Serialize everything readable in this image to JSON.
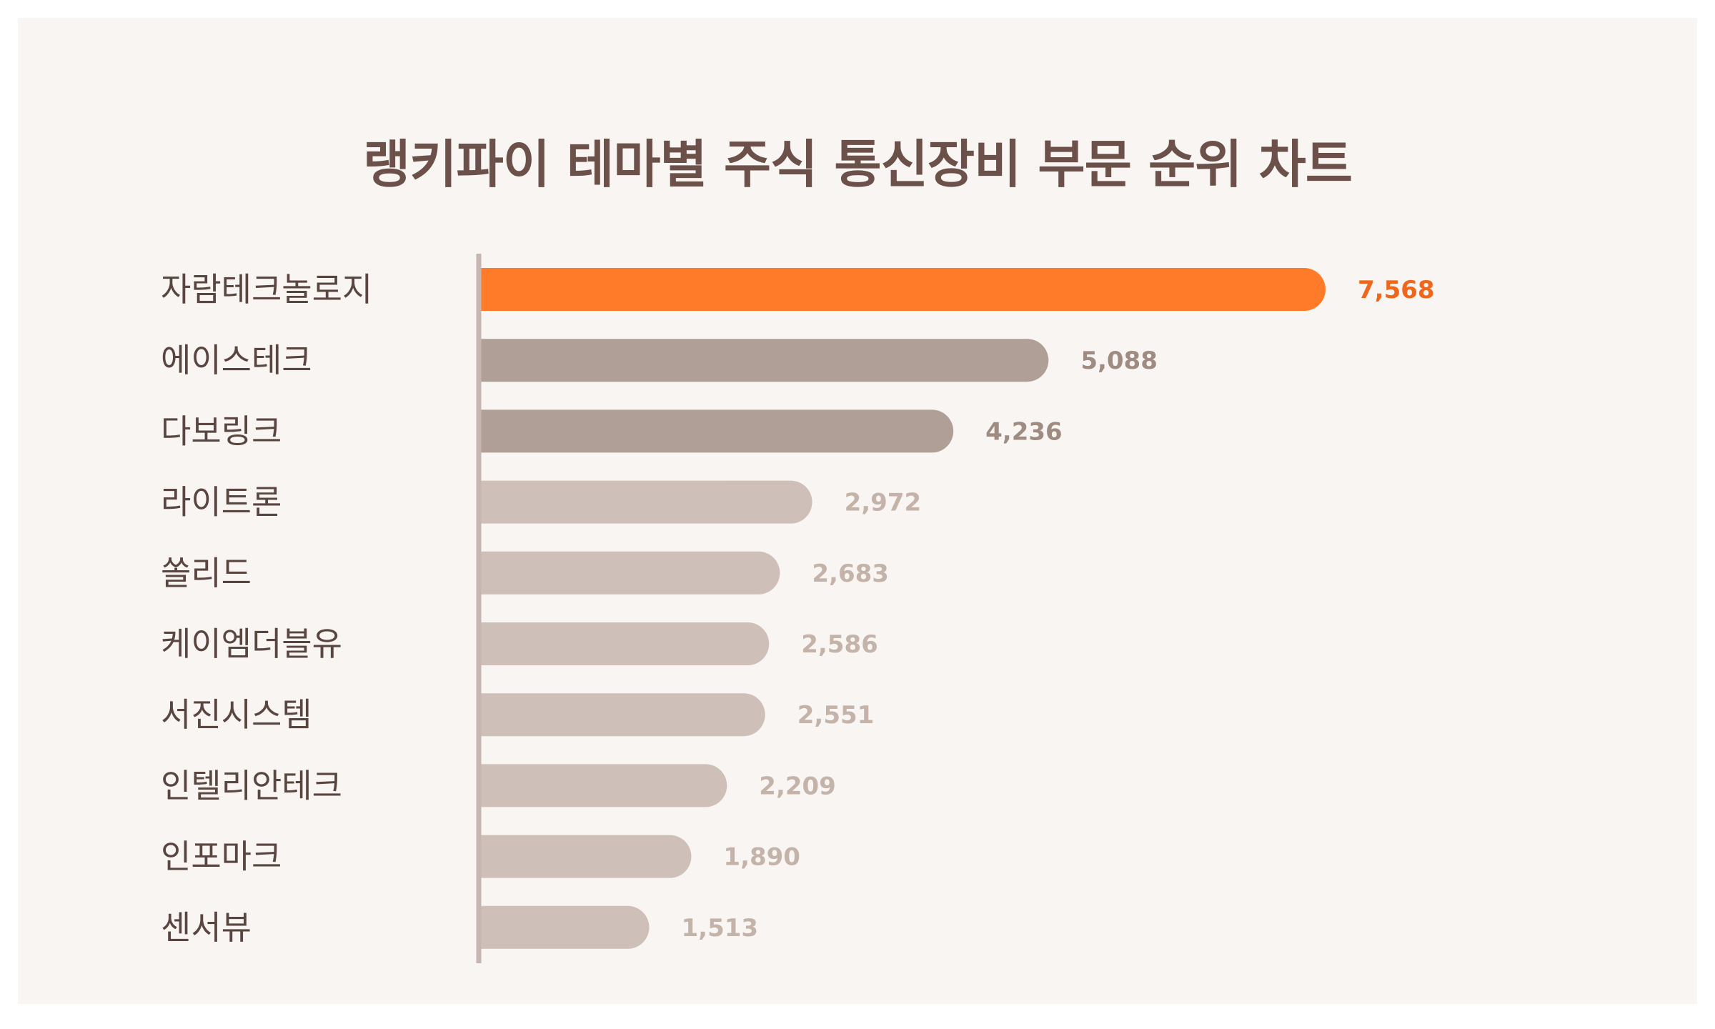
{
  "chart_data": {
    "type": "bar",
    "orientation": "horizontal",
    "title": "랭키파이 테마별 주식 통신장비 부문 순위 차트",
    "categories": [
      "자람테크놀로지",
      "에이스테크",
      "다보링크",
      "라이트론",
      "쏠리드",
      "케이엠더블유",
      "서진시스템",
      "인텔리안테크",
      "인포마크",
      "센서뷰"
    ],
    "values": [
      7568,
      5088,
      4236,
      2972,
      2683,
      2586,
      2551,
      2209,
      1890,
      1513
    ],
    "value_labels": [
      "7,568",
      "5,088",
      "4,236",
      "2,972",
      "2,683",
      "2,586",
      "2,551",
      "2,209",
      "1,890",
      "1,513"
    ],
    "xlim": [
      0,
      7568
    ],
    "grid": false,
    "legend": "none",
    "colors": {
      "top": "#ff7a29",
      "top_label": "#f0661a",
      "second_tier": "#b09f97",
      "second_tier_label": "#9e8b82",
      "rest": "#cec0b8",
      "rest_label": "#c4b3a9",
      "axis": "#c5b7af",
      "title": "#6b5149",
      "category": "#5a4640",
      "background": "#f9f5f3"
    }
  }
}
